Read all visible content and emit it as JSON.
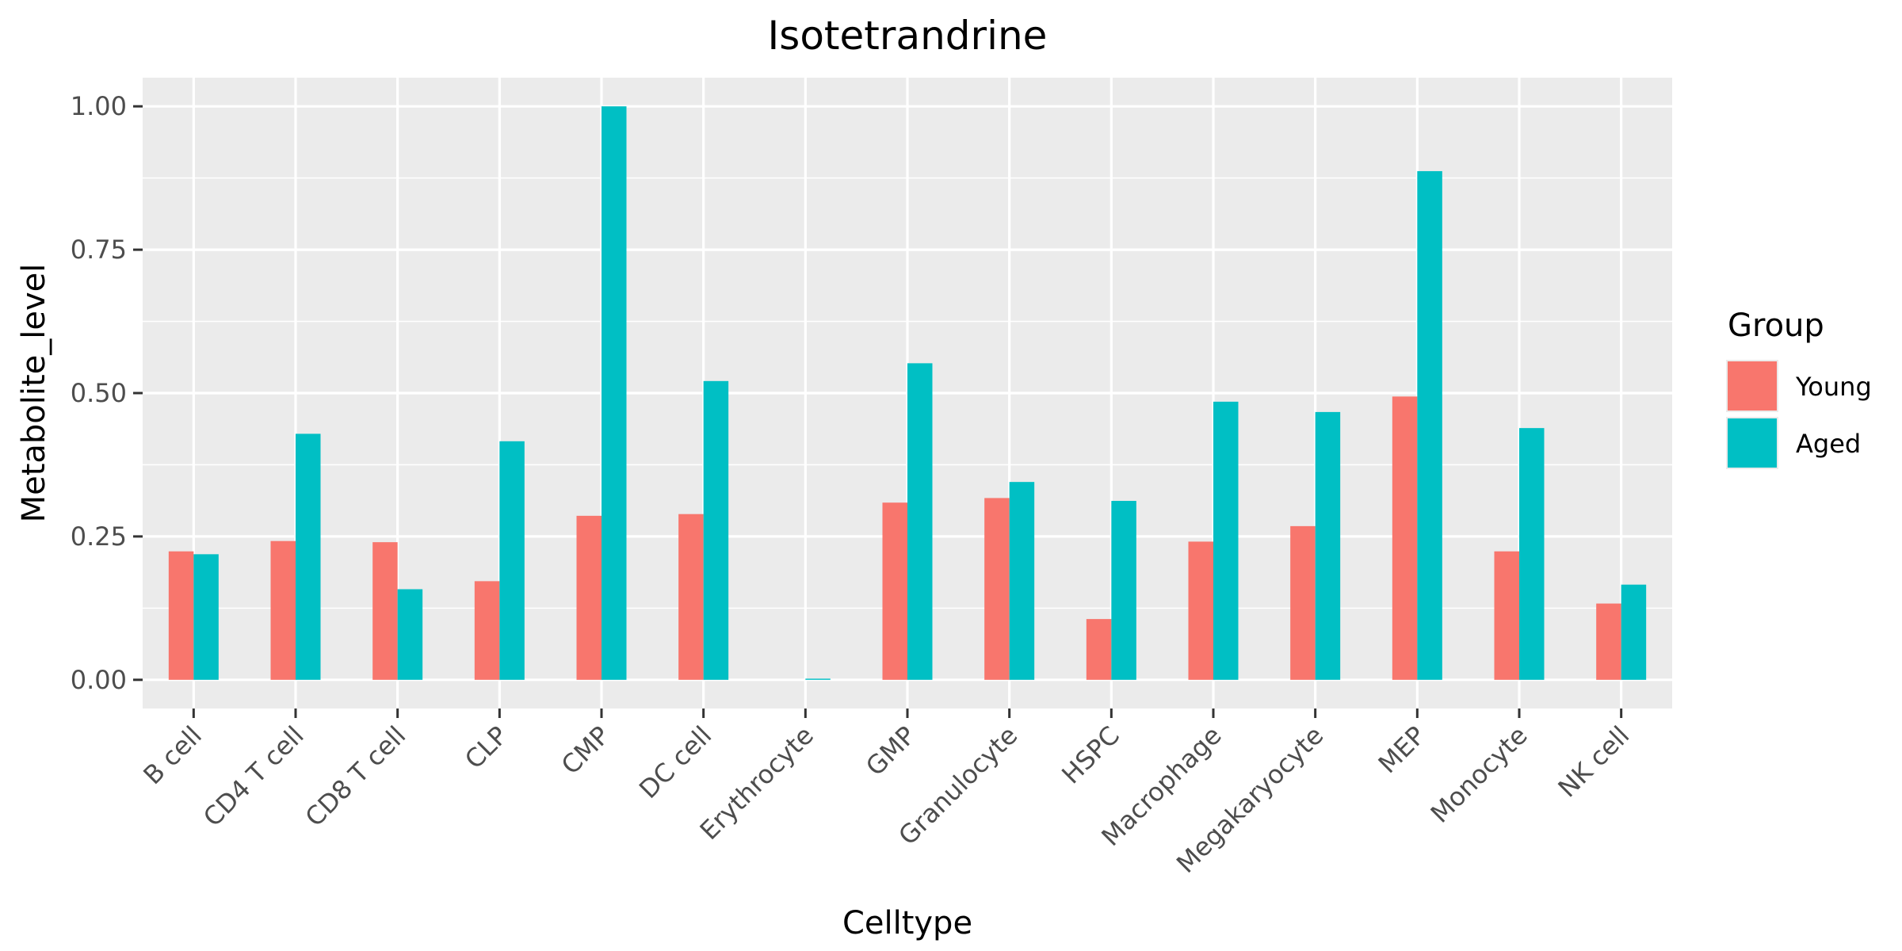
{
  "chart_data": {
    "type": "bar",
    "title": "Isotetrandrine",
    "xlabel": "Celltype",
    "ylabel": "Metabolite_level",
    "ylim": [
      -0.05,
      1.05
    ],
    "yticks": [
      "0.00",
      "0.25",
      "0.50",
      "0.75",
      "1.00"
    ],
    "grid": true,
    "legend": {
      "title": "Group",
      "position": "right"
    },
    "categories": [
      "B cell",
      "CD4 T cell",
      "CD8 T cell",
      "CLP",
      "CMP",
      "DC cell",
      "Erythrocyte",
      "GMP",
      "Granulocyte",
      "HSPC",
      "Macrophage",
      "Megakaryocyte",
      "MEP",
      "Monocyte",
      "NK cell"
    ],
    "series": [
      {
        "name": "Young",
        "color": "#F8766D",
        "values": [
          0.224,
          0.242,
          0.24,
          0.172,
          0.286,
          0.289,
          0.0,
          0.309,
          0.317,
          0.106,
          0.241,
          0.268,
          0.494,
          0.224,
          0.133
        ]
      },
      {
        "name": "Aged",
        "color": "#00BFC4",
        "values": [
          0.219,
          0.429,
          0.158,
          0.416,
          1.0,
          0.521,
          0.002,
          0.552,
          0.345,
          0.312,
          0.485,
          0.467,
          0.887,
          0.439,
          0.166
        ]
      }
    ]
  }
}
